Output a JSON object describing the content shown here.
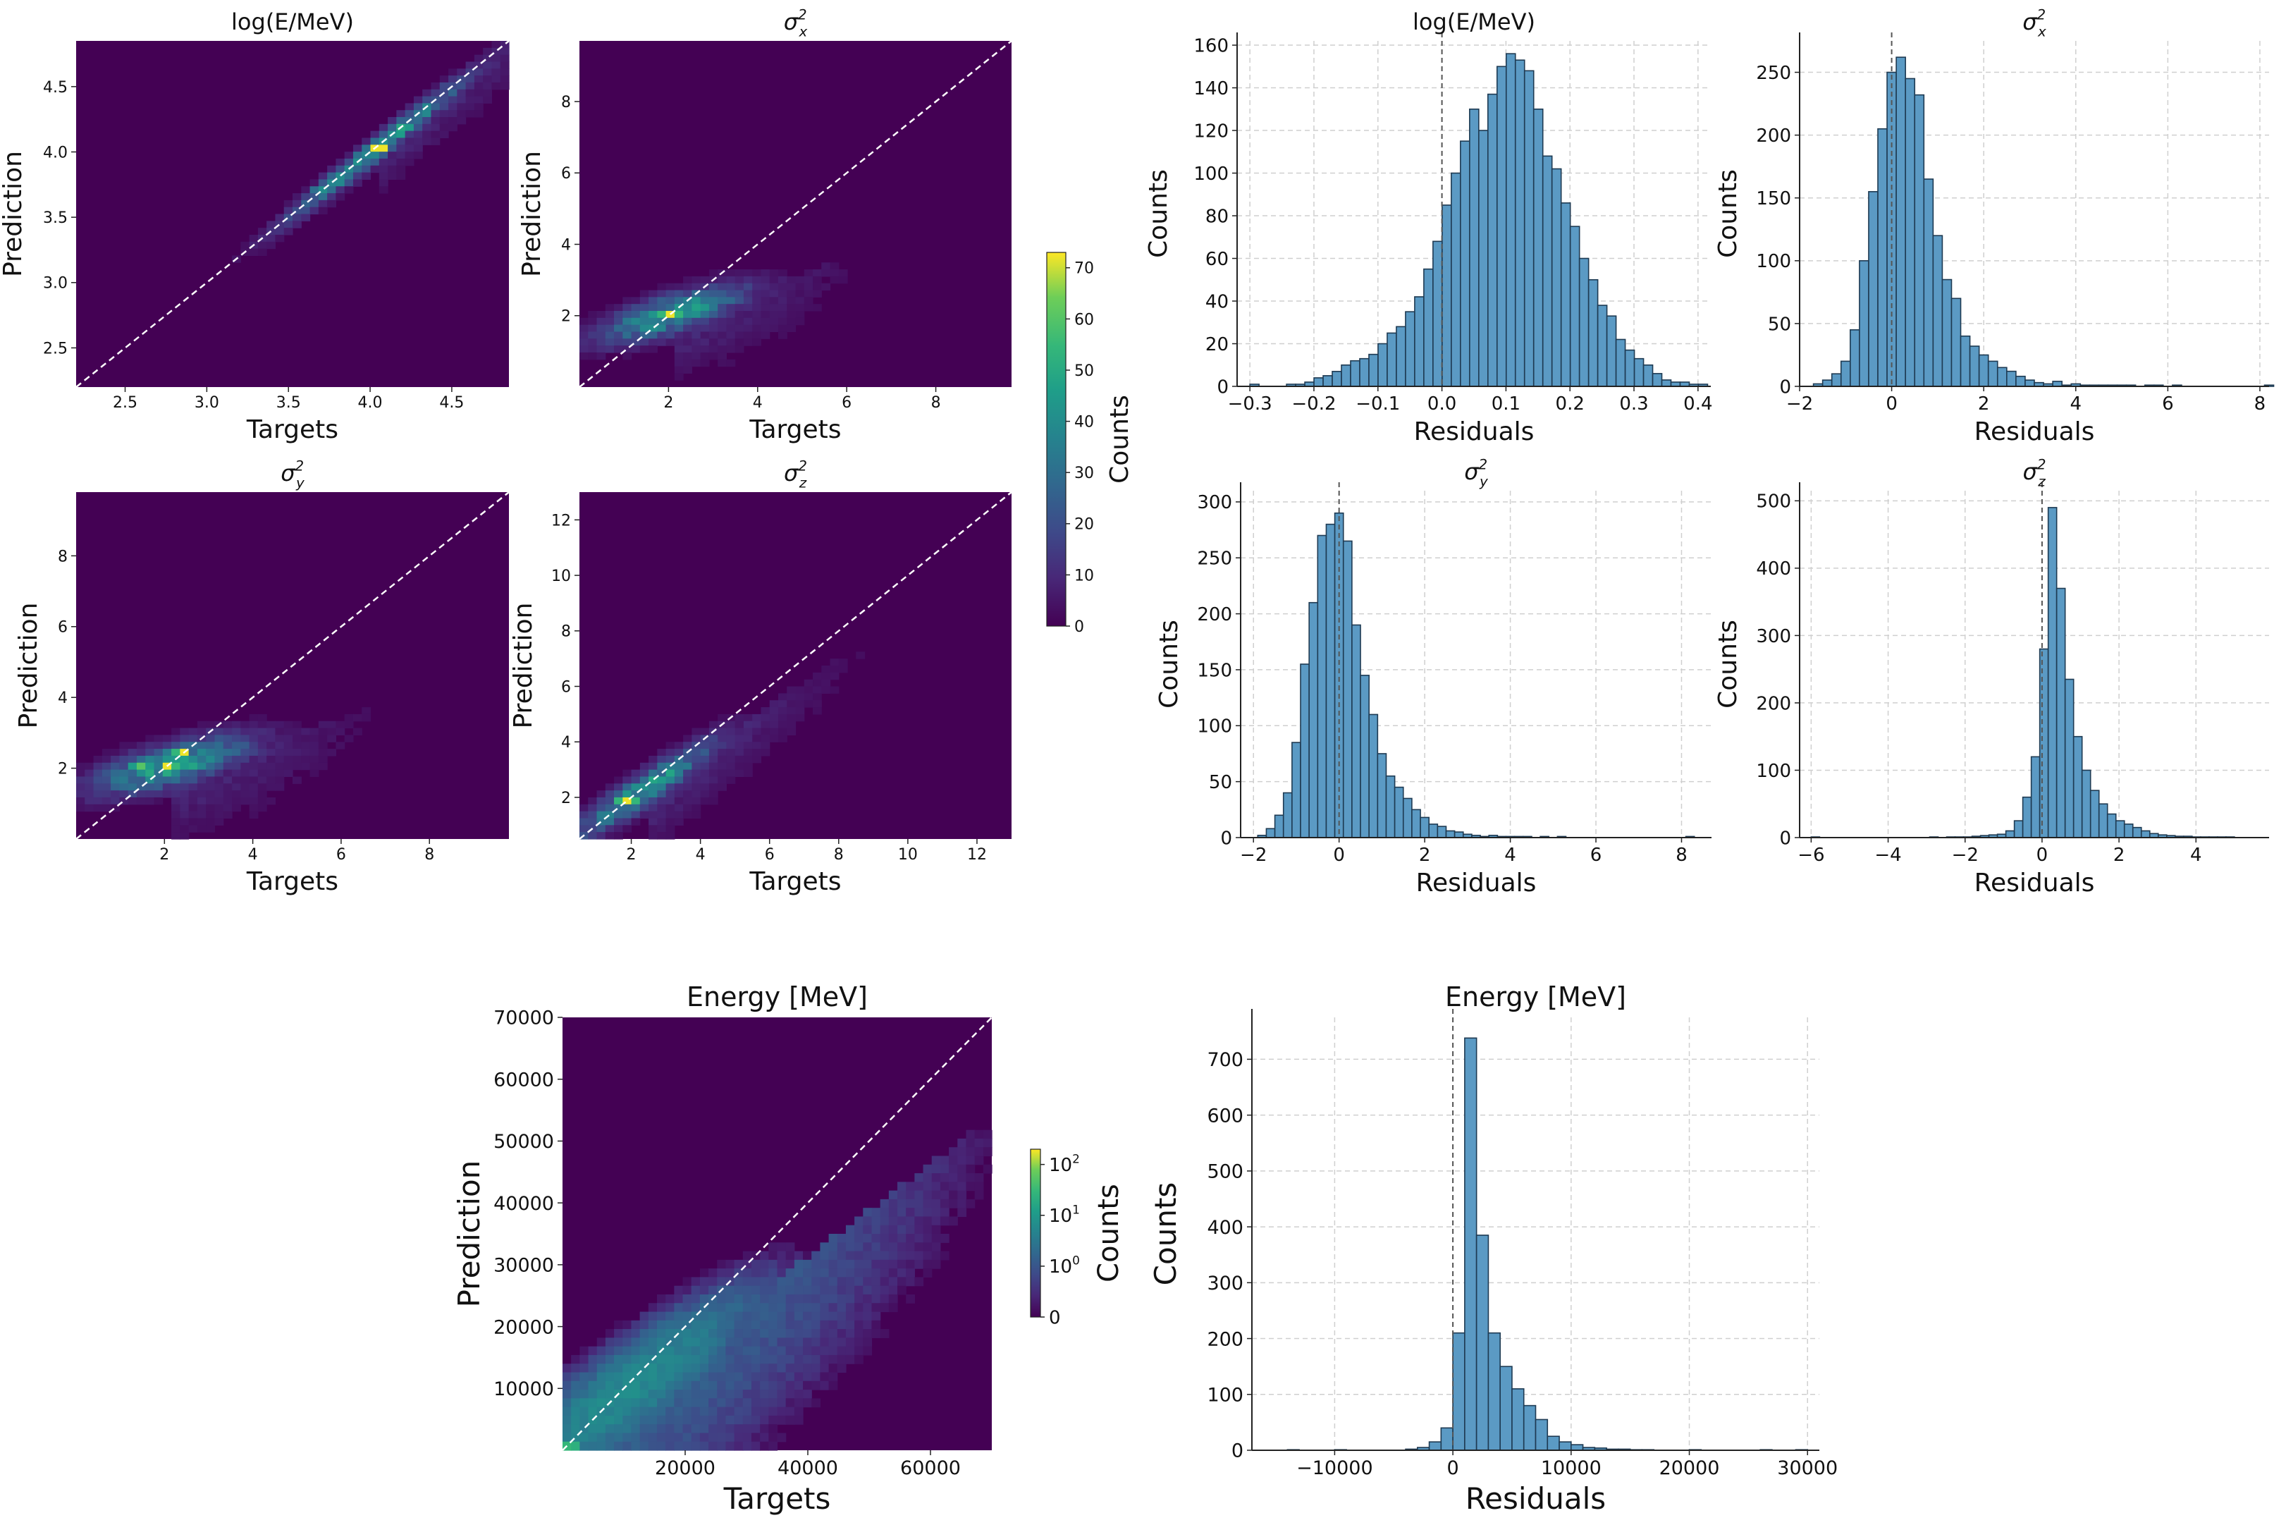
{
  "chart_data": [
    {
      "id": "h_logE",
      "type": "heatmap",
      "title": "log(E/MeV)",
      "xlabel": "Targets",
      "ylabel": "Prediction",
      "xlim": [
        2.2,
        4.85
      ],
      "ylim": [
        2.2,
        4.85
      ],
      "xticks": [
        "2.5",
        "3.0",
        "3.5",
        "4.0",
        "4.5"
      ],
      "xtick_values": [
        2.5,
        3.0,
        3.5,
        4.0,
        4.5
      ],
      "yticks": [
        "2.5",
        "3.0",
        "3.5",
        "4.0",
        "4.5"
      ],
      "ytick_values": [
        2.5,
        3.0,
        3.5,
        4.0,
        4.5
      ],
      "density": {
        "center": [
          4.05,
          4.03
        ],
        "slope": 1.0,
        "along_sigma": 0.55,
        "across_sigma": 0.05,
        "peak_count": 72
      },
      "hotspots": [
        [
          4.05,
          4.02,
          72
        ],
        [
          3.7,
          3.7,
          40
        ]
      ],
      "diagonal": true
    },
    {
      "id": "h_sx",
      "type": "heatmap",
      "title": "σ_x^2",
      "title_main": "σ",
      "title_sub": "x",
      "title_sup": "2",
      "xlabel": "Targets",
      "ylabel": "Prediction",
      "xlim": [
        0.0,
        9.7
      ],
      "ylim": [
        0.0,
        9.7
      ],
      "xticks": [
        "2",
        "4",
        "6",
        "8"
      ],
      "xtick_values": [
        2,
        4,
        6,
        8
      ],
      "yticks": [
        "2",
        "4",
        "6",
        "8"
      ],
      "ytick_values": [
        2,
        4,
        6,
        8
      ],
      "density": {
        "center": [
          2.1,
          2.05
        ],
        "slope": 0.4,
        "along_sigma": 1.2,
        "across_sigma": 0.35,
        "peak_count": 72
      },
      "hotspots": [
        [
          2.0,
          2.0,
          72
        ]
      ],
      "diagonal": true
    },
    {
      "id": "h_sy",
      "type": "heatmap",
      "title": "σ_y^2",
      "title_main": "σ",
      "title_sub": "y",
      "title_sup": "2",
      "xlabel": "Targets",
      "ylabel": "Prediction",
      "xlim": [
        0.0,
        9.8
      ],
      "ylim": [
        0.0,
        9.8
      ],
      "xticks": [
        "2",
        "4",
        "6",
        "8"
      ],
      "xtick_values": [
        2,
        4,
        6,
        8
      ],
      "yticks": [
        "2",
        "4",
        "6",
        "8"
      ],
      "ytick_values": [
        2,
        4,
        6,
        8
      ],
      "density": {
        "center": [
          2.2,
          2.1
        ],
        "slope": 0.35,
        "along_sigma": 1.3,
        "across_sigma": 0.4,
        "peak_count": 72
      },
      "hotspots": [
        [
          2.4,
          2.5,
          72
        ],
        [
          2.1,
          2.1,
          72
        ],
        [
          1.5,
          2.1,
          60
        ]
      ],
      "diagonal": true
    },
    {
      "id": "h_sz",
      "type": "heatmap",
      "title": "σ_z^2",
      "title_main": "σ",
      "title_sub": "z",
      "title_sup": "2",
      "xlabel": "Targets",
      "ylabel": "Prediction",
      "xlim": [
        0.5,
        13.0
      ],
      "ylim": [
        0.5,
        13.0
      ],
      "xticks": [
        "2",
        "4",
        "6",
        "8",
        "10",
        "12"
      ],
      "xtick_values": [
        2,
        4,
        6,
        8,
        10,
        12
      ],
      "yticks": [
        "2",
        "4",
        "6",
        "8",
        "10",
        "12"
      ],
      "ytick_values": [
        2,
        4,
        6,
        8,
        10,
        12
      ],
      "density": {
        "center": [
          2.4,
          2.3
        ],
        "slope": 0.85,
        "along_sigma": 1.8,
        "across_sigma": 0.35,
        "peak_count": 72
      },
      "hotspots": [
        [
          1.9,
          1.9,
          72
        ]
      ],
      "diagonal": true
    },
    {
      "id": "hist_logE",
      "type": "bar",
      "title": "log(E/MeV)",
      "xlabel": "Residuals",
      "ylabel": "Counts",
      "xlim": [
        -0.32,
        0.42
      ],
      "ylim": [
        0,
        162
      ],
      "bin_start": -0.3,
      "bin_width": 0.0143,
      "vline": 0.0,
      "values": [
        1,
        0,
        0,
        0,
        1,
        1,
        2,
        4,
        5,
        7,
        10,
        12,
        13,
        15,
        20,
        25,
        28,
        35,
        42,
        55,
        68,
        85,
        100,
        115,
        130,
        120,
        137,
        150,
        156,
        153,
        148,
        130,
        108,
        102,
        86,
        75,
        60,
        50,
        38,
        33,
        22,
        17,
        13,
        10,
        6,
        3,
        2,
        2,
        1,
        1,
        0
      ],
      "xticks": [
        "−0.3",
        "−0.2",
        "−0.1",
        "0.0",
        "0.1",
        "0.2",
        "0.3",
        "0.4"
      ],
      "xtick_values": [
        -0.3,
        -0.2,
        -0.1,
        0.0,
        0.1,
        0.2,
        0.3,
        0.4
      ],
      "yticks": [
        "0",
        "20",
        "40",
        "60",
        "80",
        "100",
        "120",
        "140",
        "160"
      ],
      "ytick_values": [
        0,
        20,
        40,
        60,
        80,
        100,
        120,
        140,
        160
      ]
    },
    {
      "id": "hist_sx",
      "type": "bar",
      "title": "σ_x^2",
      "title_main": "σ",
      "title_sub": "x",
      "title_sup": "2",
      "xlabel": "Residuals",
      "ylabel": "Counts",
      "xlim": [
        -2.0,
        8.2
      ],
      "ylim": [
        0,
        275
      ],
      "bin_start": -1.7,
      "bin_width": 0.2,
      "vline": 0.0,
      "values": [
        2,
        5,
        10,
        20,
        45,
        100,
        155,
        205,
        250,
        262,
        245,
        232,
        165,
        120,
        85,
        70,
        40,
        32,
        25,
        20,
        15,
        12,
        8,
        5,
        3,
        2,
        4,
        1,
        2,
        1,
        1,
        1,
        1,
        1,
        1,
        0,
        1,
        1,
        0,
        1,
        0,
        0,
        0,
        0,
        0,
        0,
        0,
        0,
        0,
        1
      ],
      "xticks": [
        "−2",
        "0",
        "2",
        "4",
        "6",
        "8"
      ],
      "xtick_values": [
        -2,
        0,
        2,
        4,
        6,
        8
      ],
      "yticks": [
        "0",
        "50",
        "100",
        "150",
        "200",
        "250"
      ],
      "ytick_values": [
        0,
        50,
        100,
        150,
        200,
        250
      ]
    },
    {
      "id": "hist_sy",
      "type": "bar",
      "title": "σ_y^2",
      "title_main": "σ",
      "title_sub": "y",
      "title_sup": "2",
      "xlabel": "Residuals",
      "ylabel": "Counts",
      "xlim": [
        -2.3,
        8.7
      ],
      "ylim": [
        0,
        310
      ],
      "bin_start": -1.9,
      "bin_width": 0.2,
      "vline": 0.0,
      "values": [
        2,
        8,
        20,
        40,
        85,
        155,
        210,
        270,
        280,
        290,
        265,
        190,
        145,
        110,
        75,
        55,
        45,
        35,
        25,
        18,
        12,
        10,
        6,
        5,
        3,
        2,
        1,
        2,
        1,
        1,
        1,
        1,
        0,
        1,
        0,
        1,
        0,
        0,
        0,
        0,
        0,
        0,
        0,
        0,
        0,
        0,
        0,
        0,
        0,
        0,
        1
      ],
      "xticks": [
        "−2",
        "0",
        "2",
        "4",
        "6",
        "8"
      ],
      "xtick_values": [
        -2,
        0,
        2,
        4,
        6,
        8
      ],
      "yticks": [
        "0",
        "50",
        "100",
        "150",
        "200",
        "250",
        "300"
      ],
      "ytick_values": [
        0,
        50,
        100,
        150,
        200,
        250,
        300
      ]
    },
    {
      "id": "hist_sz",
      "type": "bar",
      "title": "σ_z^2",
      "title_main": "σ",
      "title_sub": "z",
      "title_sup": "2",
      "xlabel": "Residuals",
      "ylabel": "Counts",
      "xlim": [
        -6.3,
        5.9
      ],
      "ylim": [
        0,
        515
      ],
      "bin_start": -6.0,
      "bin_width": 0.22,
      "vline": 0.0,
      "values": [
        1,
        0,
        0,
        0,
        0,
        0,
        0,
        0,
        0,
        0,
        0,
        0,
        0,
        0,
        1,
        0,
        1,
        1,
        1,
        2,
        3,
        4,
        5,
        10,
        25,
        60,
        120,
        280,
        490,
        370,
        235,
        150,
        100,
        70,
        50,
        35,
        25,
        20,
        15,
        10,
        6,
        4,
        3,
        2,
        2,
        1,
        1,
        1,
        1,
        1
      ],
      "xticks": [
        "−6",
        "−4",
        "−2",
        "0",
        "2",
        "4"
      ],
      "xtick_values": [
        -6,
        -4,
        -2,
        0,
        2,
        4
      ],
      "yticks": [
        "0",
        "100",
        "200",
        "300",
        "400",
        "500"
      ],
      "ytick_values": [
        0,
        100,
        200,
        300,
        400,
        500
      ]
    },
    {
      "id": "h_energy",
      "type": "heatmap",
      "title": "Energy [MeV]",
      "xlabel": "Targets",
      "ylabel": "Prediction",
      "xlim": [
        0,
        70000
      ],
      "ylim": [
        0,
        70000
      ],
      "xticks": [
        "20000",
        "40000",
        "60000"
      ],
      "xtick_values": [
        20000,
        40000,
        60000
      ],
      "yticks": [
        "10000",
        "20000",
        "30000",
        "40000",
        "50000",
        "60000",
        "70000"
      ],
      "ytick_values": [
        10000,
        20000,
        30000,
        40000,
        50000,
        60000,
        70000
      ],
      "density": {
        "center": [
          10000,
          9000
        ],
        "slope": 0.75,
        "along_sigma": 14000,
        "across_sigma": 3500,
        "peak_count": 100
      },
      "hotspots": [
        [
          1000,
          1000,
          300
        ]
      ],
      "diagonal": true,
      "log_scale": true
    },
    {
      "id": "hist_energy",
      "type": "bar",
      "title": "Energy [MeV]",
      "xlabel": "Residuals",
      "ylabel": "Counts",
      "xlim": [
        -17000,
        31000
      ],
      "ylim": [
        0,
        775
      ],
      "bin_start": -14000,
      "bin_width": 1000,
      "vline": 0,
      "values": [
        1,
        0,
        0,
        0,
        1,
        0,
        0,
        0,
        0,
        0,
        2,
        5,
        15,
        40,
        210,
        738,
        385,
        210,
        150,
        110,
        80,
        55,
        25,
        15,
        10,
        5,
        4,
        2,
        2,
        1,
        1,
        0,
        0,
        0,
        1,
        0,
        0,
        0,
        0,
        0,
        1,
        0,
        0,
        1
      ],
      "xticks": [
        "−10000",
        "0",
        "10000",
        "20000",
        "30000"
      ],
      "xtick_values": [
        -10000,
        0,
        10000,
        20000,
        30000
      ],
      "yticks": [
        "0",
        "100",
        "200",
        "300",
        "400",
        "500",
        "600",
        "700"
      ],
      "ytick_values": [
        0,
        100,
        200,
        300,
        400,
        500,
        600,
        700
      ]
    }
  ],
  "colorbars": [
    {
      "id": "cb_top",
      "label": "Counts",
      "ticks": [
        "0",
        "10",
        "20",
        "30",
        "40",
        "50",
        "60",
        "70"
      ],
      "tick_values": [
        0,
        10,
        20,
        30,
        40,
        50,
        60,
        70
      ],
      "max": 73
    },
    {
      "id": "cb_energy",
      "label": "Counts",
      "ticks": [
        "0",
        "10",
        "10",
        "10"
      ],
      "tick_values": [
        0,
        1,
        2,
        3
      ],
      "tick_sups": [
        "",
        "0",
        "1",
        "2"
      ],
      "max": 3.3
    }
  ],
  "colors": {
    "bar_fill": "#5b9ac4",
    "bar_edge": "#1e3a52",
    "grid": "#cfcfcf",
    "heat_background": "#440154",
    "vline": "#555555",
    "diagonal": "#ffffff"
  }
}
